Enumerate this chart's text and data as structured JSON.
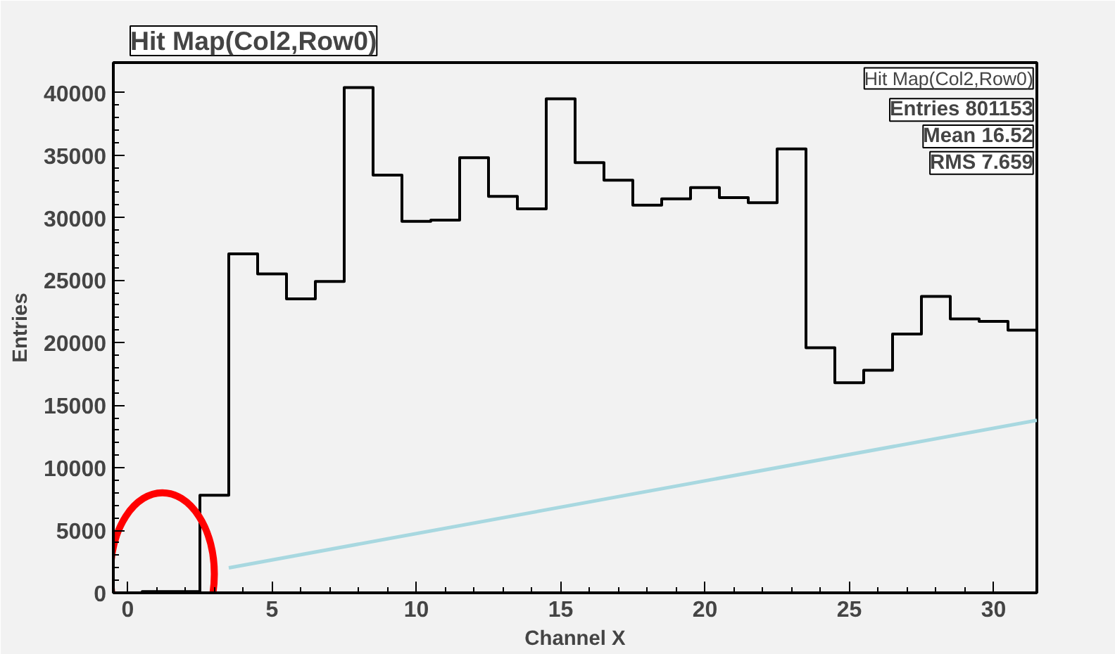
{
  "chart_data": {
    "type": "histogram",
    "title": "Hit Map(Col2,Row0)",
    "xlabel": "Channel X",
    "ylabel": "Entries",
    "bins": [
      -0.5,
      0.5,
      1.5,
      2.5,
      3.5,
      4.5,
      5.5,
      6.5,
      7.5,
      8.5,
      9.5,
      10.5,
      11.5,
      12.5,
      13.5,
      14.5,
      15.5,
      16.5,
      17.5,
      18.5,
      19.5,
      20.5,
      21.5,
      22.5,
      23.5,
      24.5,
      25.5,
      26.5,
      27.5,
      28.5,
      29.5,
      30.5,
      31.5
    ],
    "series": [
      {
        "type": "histogram",
        "color": "#000000",
        "values": [
          0,
          100,
          100,
          7800,
          27100,
          25500,
          23500,
          24900,
          40400,
          33400,
          29700,
          29800,
          34800,
          31700,
          30700,
          39500,
          34400,
          33000,
          31000,
          31500,
          32400,
          31600,
          31200,
          35500,
          19600,
          16800,
          17800,
          20700,
          23700,
          21900,
          21700,
          21000
        ]
      },
      {
        "type": "line",
        "color": "#a8d8e0",
        "x": [
          3.5,
          31.5
        ],
        "values": [
          2000,
          13800
        ]
      }
    ],
    "xlim": [
      -0.5,
      31.5
    ],
    "ylim": [
      0,
      42400
    ],
    "xticks": [
      0,
      5,
      10,
      15,
      20,
      25,
      30
    ],
    "yticks": [
      0,
      5000,
      10000,
      15000,
      20000,
      25000,
      30000,
      35000,
      40000
    ],
    "grid": false,
    "legend": false,
    "annotations": [
      "Hit Map(Col2,Row0)",
      "Entries 801153",
      "Mean 16.52",
      "RMS 7.659"
    ]
  }
}
